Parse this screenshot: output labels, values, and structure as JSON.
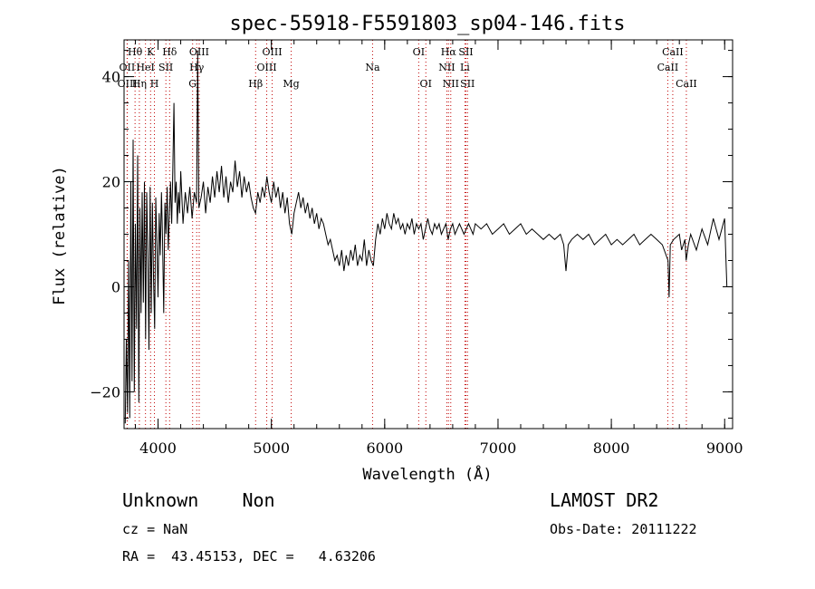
{
  "colors": {
    "background": "#ffffff",
    "foreground": "#000000",
    "marker_lines": "#c00000"
  },
  "footer": {
    "class_text": "Unknown    Non",
    "cz_text": "cz = NaN",
    "radec_text": "RA =  43.45153, DEC =   4.63206",
    "survey_text": "LAMOST DR2",
    "obs_date_text": "Obs-Date: 20111222"
  },
  "chart_data": {
    "type": "line",
    "title": "spec-55918-F5591803_sp04-146.fits",
    "xlabel": "Wavelength (Å)",
    "ylabel": "Flux (relative)",
    "xlim": [
      3700,
      9070
    ],
    "ylim": [
      -27,
      47
    ],
    "xticks": [
      4000,
      5000,
      6000,
      7000,
      8000,
      9000
    ],
    "yticks": [
      -20,
      0,
      20,
      40
    ],
    "x_minor_step": 200,
    "y_minor_step": 5,
    "grid": false,
    "series": [
      {
        "points": [
          [
            3710,
            -26
          ],
          [
            3720,
            -10
          ],
          [
            3730,
            -24
          ],
          [
            3740,
            5
          ],
          [
            3750,
            -25
          ],
          [
            3760,
            20
          ],
          [
            3770,
            -18
          ],
          [
            3780,
            28
          ],
          [
            3790,
            -20
          ],
          [
            3800,
            12
          ],
          [
            3810,
            -8
          ],
          [
            3820,
            25
          ],
          [
            3830,
            -22
          ],
          [
            3840,
            15
          ],
          [
            3850,
            -5
          ],
          [
            3860,
            18
          ],
          [
            3870,
            -3
          ],
          [
            3880,
            20
          ],
          [
            3890,
            -10
          ],
          [
            3900,
            18
          ],
          [
            3910,
            6
          ],
          [
            3920,
            -12
          ],
          [
            3930,
            19
          ],
          [
            3940,
            -5
          ],
          [
            3950,
            16
          ],
          [
            3960,
            2
          ],
          [
            3970,
            -8
          ],
          [
            3980,
            17
          ],
          [
            3990,
            8
          ],
          [
            4000,
            -2
          ],
          [
            4010,
            14
          ],
          [
            4020,
            6
          ],
          [
            4030,
            18
          ],
          [
            4040,
            9
          ],
          [
            4050,
            -5
          ],
          [
            4060,
            16
          ],
          [
            4070,
            10
          ],
          [
            4080,
            19
          ],
          [
            4090,
            7
          ],
          [
            4100,
            14
          ],
          [
            4110,
            20
          ],
          [
            4120,
            12
          ],
          [
            4130,
            22
          ],
          [
            4140,
            35
          ],
          [
            4150,
            16
          ],
          [
            4160,
            20
          ],
          [
            4170,
            12
          ],
          [
            4180,
            18
          ],
          [
            4190,
            14
          ],
          [
            4200,
            22
          ],
          [
            4220,
            12
          ],
          [
            4240,
            18
          ],
          [
            4260,
            14
          ],
          [
            4280,
            19
          ],
          [
            4300,
            13
          ],
          [
            4320,
            18
          ],
          [
            4340,
            16
          ],
          [
            4350,
            45
          ],
          [
            4360,
            15
          ],
          [
            4380,
            17
          ],
          [
            4400,
            20
          ],
          [
            4420,
            14
          ],
          [
            4440,
            19
          ],
          [
            4460,
            16
          ],
          [
            4480,
            21
          ],
          [
            4500,
            17
          ],
          [
            4520,
            22
          ],
          [
            4540,
            18
          ],
          [
            4560,
            23
          ],
          [
            4580,
            17
          ],
          [
            4600,
            21
          ],
          [
            4620,
            16
          ],
          [
            4640,
            20
          ],
          [
            4660,
            18
          ],
          [
            4680,
            24
          ],
          [
            4700,
            19
          ],
          [
            4720,
            22
          ],
          [
            4740,
            17
          ],
          [
            4760,
            21
          ],
          [
            4780,
            18
          ],
          [
            4800,
            20
          ],
          [
            4820,
            17
          ],
          [
            4840,
            15
          ],
          [
            4860,
            14
          ],
          [
            4880,
            18
          ],
          [
            4900,
            16
          ],
          [
            4920,
            19
          ],
          [
            4940,
            17
          ],
          [
            4960,
            21
          ],
          [
            4980,
            18
          ],
          [
            5000,
            16
          ],
          [
            5020,
            20
          ],
          [
            5040,
            17
          ],
          [
            5060,
            19
          ],
          [
            5080,
            15
          ],
          [
            5100,
            18
          ],
          [
            5120,
            14
          ],
          [
            5140,
            17
          ],
          [
            5160,
            12
          ],
          [
            5180,
            10
          ],
          [
            5200,
            14
          ],
          [
            5220,
            16
          ],
          [
            5240,
            18
          ],
          [
            5260,
            15
          ],
          [
            5280,
            17
          ],
          [
            5300,
            14
          ],
          [
            5320,
            16
          ],
          [
            5340,
            13
          ],
          [
            5360,
            15
          ],
          [
            5380,
            12
          ],
          [
            5400,
            14
          ],
          [
            5420,
            11
          ],
          [
            5440,
            13
          ],
          [
            5460,
            12
          ],
          [
            5480,
            10
          ],
          [
            5500,
            8
          ],
          [
            5520,
            9
          ],
          [
            5540,
            7
          ],
          [
            5560,
            5
          ],
          [
            5580,
            6
          ],
          [
            5600,
            4
          ],
          [
            5620,
            7
          ],
          [
            5640,
            3
          ],
          [
            5660,
            6
          ],
          [
            5680,
            4
          ],
          [
            5700,
            7
          ],
          [
            5720,
            5
          ],
          [
            5740,
            8
          ],
          [
            5760,
            4
          ],
          [
            5780,
            6
          ],
          [
            5800,
            5
          ],
          [
            5820,
            9
          ],
          [
            5840,
            4
          ],
          [
            5860,
            7
          ],
          [
            5880,
            5
          ],
          [
            5900,
            4
          ],
          [
            5920,
            9
          ],
          [
            5940,
            12
          ],
          [
            5960,
            10
          ],
          [
            5980,
            13
          ],
          [
            6000,
            11
          ],
          [
            6020,
            14
          ],
          [
            6040,
            12
          ],
          [
            6060,
            11
          ],
          [
            6080,
            14
          ],
          [
            6100,
            12
          ],
          [
            6120,
            13
          ],
          [
            6140,
            11
          ],
          [
            6160,
            12
          ],
          [
            6180,
            10
          ],
          [
            6200,
            12
          ],
          [
            6220,
            11
          ],
          [
            6240,
            13
          ],
          [
            6260,
            10
          ],
          [
            6280,
            12
          ],
          [
            6300,
            11
          ],
          [
            6320,
            12
          ],
          [
            6340,
            9
          ],
          [
            6360,
            11
          ],
          [
            6380,
            13
          ],
          [
            6400,
            11
          ],
          [
            6420,
            10
          ],
          [
            6440,
            12
          ],
          [
            6460,
            11
          ],
          [
            6480,
            12
          ],
          [
            6500,
            10
          ],
          [
            6520,
            11
          ],
          [
            6540,
            12
          ],
          [
            6560,
            9
          ],
          [
            6580,
            11
          ],
          [
            6600,
            12
          ],
          [
            6620,
            10
          ],
          [
            6640,
            11
          ],
          [
            6660,
            12
          ],
          [
            6680,
            11
          ],
          [
            6700,
            10
          ],
          [
            6720,
            11
          ],
          [
            6740,
            12
          ],
          [
            6760,
            11
          ],
          [
            6780,
            10
          ],
          [
            6800,
            12
          ],
          [
            6850,
            11
          ],
          [
            6900,
            12
          ],
          [
            6950,
            10
          ],
          [
            7000,
            11
          ],
          [
            7050,
            12
          ],
          [
            7100,
            10
          ],
          [
            7150,
            11
          ],
          [
            7200,
            12
          ],
          [
            7250,
            10
          ],
          [
            7300,
            11
          ],
          [
            7350,
            10
          ],
          [
            7400,
            9
          ],
          [
            7450,
            10
          ],
          [
            7500,
            9
          ],
          [
            7550,
            10
          ],
          [
            7580,
            8
          ],
          [
            7600,
            3
          ],
          [
            7620,
            8
          ],
          [
            7650,
            9
          ],
          [
            7700,
            10
          ],
          [
            7750,
            9
          ],
          [
            7800,
            10
          ],
          [
            7850,
            8
          ],
          [
            7900,
            9
          ],
          [
            7950,
            10
          ],
          [
            8000,
            8
          ],
          [
            8050,
            9
          ],
          [
            8100,
            8
          ],
          [
            8150,
            9
          ],
          [
            8200,
            10
          ],
          [
            8250,
            8
          ],
          [
            8300,
            9
          ],
          [
            8350,
            10
          ],
          [
            8400,
            9
          ],
          [
            8450,
            8
          ],
          [
            8500,
            5
          ],
          [
            8510,
            -2
          ],
          [
            8520,
            8
          ],
          [
            8550,
            9
          ],
          [
            8600,
            10
          ],
          [
            8620,
            7
          ],
          [
            8650,
            9
          ],
          [
            8660,
            5
          ],
          [
            8680,
            8
          ],
          [
            8700,
            10
          ],
          [
            8750,
            7
          ],
          [
            8800,
            11
          ],
          [
            8850,
            8
          ],
          [
            8900,
            13
          ],
          [
            8950,
            9
          ],
          [
            9000,
            13
          ],
          [
            9010,
            6
          ],
          [
            9020,
            0
          ]
        ]
      }
    ],
    "emission_lines": [
      {
        "label": "Hθ",
        "wavelength": 3797,
        "row": 0
      },
      {
        "label": "OII",
        "wavelength": 3727,
        "row": 1
      },
      {
        "label": "OIII",
        "wavelength": 3729,
        "row": 2
      },
      {
        "label": "Hη",
        "wavelength": 3835,
        "row": 2
      },
      {
        "label": "K",
        "wavelength": 3934,
        "row": 0
      },
      {
        "label": "HeI",
        "wavelength": 3889,
        "row": 1
      },
      {
        "label": "SII",
        "wavelength": 4069,
        "row": 1
      },
      {
        "label": "H",
        "wavelength": 3968,
        "row": 2
      },
      {
        "label": "Hδ",
        "wavelength": 4102,
        "row": 0
      },
      {
        "label": "OIII",
        "wavelength": 4363,
        "row": 0
      },
      {
        "label": "Hγ",
        "wavelength": 4341,
        "row": 1
      },
      {
        "label": "G",
        "wavelength": 4305,
        "row": 2
      },
      {
        "label": "Hβ",
        "wavelength": 4861,
        "row": 2
      },
      {
        "label": "OIII",
        "wavelength": 5007,
        "row": 0
      },
      {
        "label": "OIII",
        "wavelength": 4959,
        "row": 1
      },
      {
        "label": "Mg",
        "wavelength": 5175,
        "row": 2
      },
      {
        "label": "Na",
        "wavelength": 5893,
        "row": 1
      },
      {
        "label": "OI",
        "wavelength": 6300,
        "row": 0
      },
      {
        "label": "OI",
        "wavelength": 6363,
        "row": 2
      },
      {
        "label": "Hα",
        "wavelength": 6563,
        "row": 0
      },
      {
        "label": "NII",
        "wavelength": 6548,
        "row": 1
      },
      {
        "label": "NII",
        "wavelength": 6583,
        "row": 2
      },
      {
        "label": "SII",
        "wavelength": 6717,
        "row": 0
      },
      {
        "label": "Li",
        "wavelength": 6708,
        "row": 1
      },
      {
        "label": "SII",
        "wavelength": 6731,
        "row": 2
      },
      {
        "label": "CaII",
        "wavelength": 8542,
        "row": 0
      },
      {
        "label": "CaII",
        "wavelength": 8498,
        "row": 1
      },
      {
        "label": "CaII",
        "wavelength": 8662,
        "row": 2
      }
    ]
  }
}
